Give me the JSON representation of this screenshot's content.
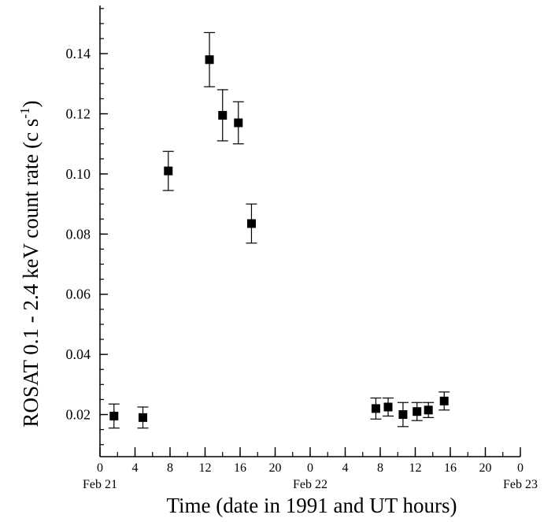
{
  "chart_data": {
    "type": "scatter",
    "title": "",
    "xlabel": "Time (date in 1991 and UT hours)",
    "ylabel": "ROSAT 0.1 - 2.4 keV count rate (c s",
    "ylabel_superscript": "-1",
    "ylabel_close": ")",
    "xlim": [
      0,
      48
    ],
    "ylim": [
      0.006,
      0.156
    ],
    "x_ticks": [
      {
        "x": 0,
        "label": "0"
      },
      {
        "x": 4,
        "label": "4"
      },
      {
        "x": 8,
        "label": "8"
      },
      {
        "x": 12,
        "label": "12"
      },
      {
        "x": 16,
        "label": "16"
      },
      {
        "x": 20,
        "label": "20"
      },
      {
        "x": 24,
        "label": "0"
      },
      {
        "x": 28,
        "label": "4"
      },
      {
        "x": 32,
        "label": "8"
      },
      {
        "x": 36,
        "label": "12"
      },
      {
        "x": 40,
        "label": "16"
      },
      {
        "x": 44,
        "label": "20"
      },
      {
        "x": 48,
        "label": "0"
      }
    ],
    "date_labels": [
      {
        "x": 0,
        "label": "Feb 21"
      },
      {
        "x": 24,
        "label": "Feb 22"
      },
      {
        "x": 48,
        "label": "Feb 23"
      }
    ],
    "y_ticks": [
      {
        "y": 0.02,
        "label": "0.02"
      },
      {
        "y": 0.04,
        "label": "0.04"
      },
      {
        "y": 0.06,
        "label": "0.06"
      },
      {
        "y": 0.08,
        "label": "0.08"
      },
      {
        "y": 0.1,
        "label": "0.10"
      },
      {
        "y": 0.12,
        "label": "0.12"
      },
      {
        "y": 0.14,
        "label": "0.14"
      }
    ],
    "grid": false,
    "marker": "filled-square",
    "series": [
      {
        "color": "#000000",
        "points": [
          {
            "x": 1.6,
            "y": 0.0195,
            "err": 0.004
          },
          {
            "x": 4.9,
            "y": 0.019,
            "err": 0.0035
          },
          {
            "x": 7.8,
            "y": 0.101,
            "err": 0.0065
          },
          {
            "x": 12.5,
            "y": 0.138,
            "err": 0.009
          },
          {
            "x": 14.0,
            "y": 0.1195,
            "err": 0.0085
          },
          {
            "x": 15.8,
            "y": 0.117,
            "err": 0.007
          },
          {
            "x": 17.3,
            "y": 0.0835,
            "err": 0.0065
          },
          {
            "x": 31.5,
            "y": 0.022,
            "err": 0.0035
          },
          {
            "x": 32.9,
            "y": 0.0225,
            "err": 0.003
          },
          {
            "x": 34.6,
            "y": 0.02,
            "err": 0.004
          },
          {
            "x": 36.2,
            "y": 0.021,
            "err": 0.003
          },
          {
            "x": 37.5,
            "y": 0.0215,
            "err": 0.0025
          },
          {
            "x": 39.3,
            "y": 0.0245,
            "err": 0.003
          }
        ]
      }
    ]
  }
}
